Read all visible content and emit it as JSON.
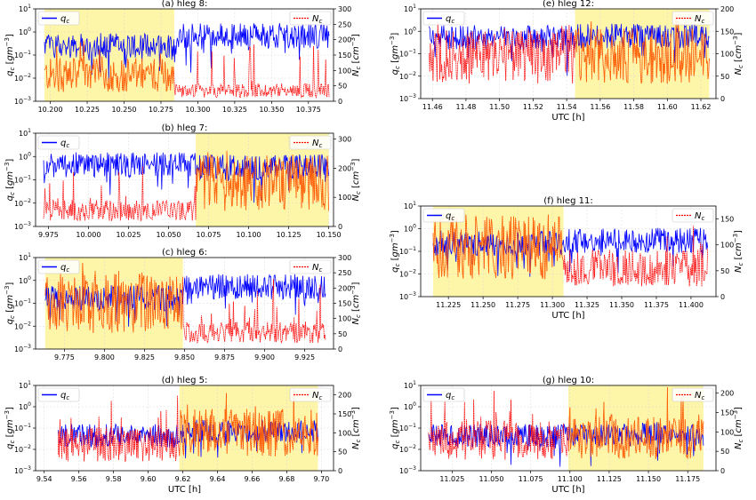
{
  "chart_data": [
    {
      "type": "line",
      "title": "(a)  hleg  8:",
      "xlabel": "",
      "ylabel_left": "q_c [gm^-3]",
      "ylabel_right": "N_c [cm^-3]",
      "xlim": [
        10.19,
        10.392
      ],
      "ylim_left_log": [
        -3,
        1
      ],
      "ylim_right": [
        0,
        300
      ],
      "xticks": [
        10.2,
        10.225,
        10.25,
        10.275,
        10.3,
        10.325,
        10.35,
        10.375
      ],
      "xticklabels": [
        "10.200",
        "10.225",
        "10.250",
        "10.275",
        "10.300",
        "10.325",
        "10.350",
        "10.375"
      ],
      "yticks_right": [
        0,
        50,
        100,
        150,
        200,
        250,
        300
      ],
      "highlight": [
        10.196,
        10.284
      ],
      "series": [
        {
          "name": "q_c",
          "axis": "left",
          "color": "#0000ff",
          "level_segments": [
            [
              10.196,
              10.284,
              0.3
            ],
            [
              10.284,
              10.389,
              0.8
            ]
          ]
        },
        {
          "name": "N_c",
          "axis": "right",
          "color": "#ff0000",
          "level_segments": [
            [
              10.196,
              10.284,
              85
            ],
            [
              10.284,
              10.389,
              35
            ]
          ]
        }
      ],
      "legend": {
        "left": "q_c",
        "right": "N_c"
      }
    },
    {
      "type": "line",
      "title": "(b)  hleg  7:",
      "xlabel": "",
      "ylabel_left": "q_c [gm^-3]",
      "ylabel_right": "N_c [cm^-3]",
      "xlim": [
        9.967,
        10.153
      ],
      "ylim_left_log": [
        -3,
        1
      ],
      "ylim_right": [
        0,
        320
      ],
      "xticks": [
        9.975,
        10.0,
        10.025,
        10.05,
        10.075,
        10.1,
        10.125,
        10.15
      ],
      "xticklabels": [
        "9.975",
        "10.000",
        "10.025",
        "10.050",
        "10.075",
        "10.100",
        "10.125",
        "10.150"
      ],
      "yticks_right": [
        0,
        100,
        200,
        300
      ],
      "highlight": [
        10.067,
        10.15
      ],
      "series": [
        {
          "name": "q_c",
          "axis": "left",
          "color": "#0000ff",
          "level_segments": [
            [
              9.972,
              10.067,
              0.5
            ],
            [
              10.067,
              10.15,
              0.4
            ]
          ]
        },
        {
          "name": "N_c",
          "axis": "right",
          "color": "#ff0000",
          "level_segments": [
            [
              9.972,
              10.067,
              55
            ],
            [
              10.067,
              10.15,
              150
            ]
          ]
        }
      ],
      "legend": {
        "left": "q_c",
        "right": "N_c"
      }
    },
    {
      "type": "line",
      "title": "(c)  hleg  6:",
      "xlabel": "",
      "ylabel_left": "q_c [gm^-3]",
      "ylabel_right": "N_c [cm^-3]",
      "xlim": [
        9.757,
        9.943
      ],
      "ylim_left_log": [
        -3,
        1
      ],
      "ylim_right": [
        0,
        300
      ],
      "xticks": [
        9.775,
        9.8,
        9.825,
        9.85,
        9.875,
        9.9,
        9.925
      ],
      "xticklabels": [
        "9.775",
        "9.800",
        "9.825",
        "9.850",
        "9.875",
        "9.900",
        "9.925"
      ],
      "yticks_right": [
        0,
        50,
        100,
        150,
        200,
        250,
        300
      ],
      "highlight": [
        9.763,
        9.849
      ],
      "series": [
        {
          "name": "q_c",
          "axis": "left",
          "color": "#0000ff",
          "level_segments": [
            [
              9.763,
              9.849,
              0.2
            ],
            [
              9.849,
              9.938,
              0.6
            ]
          ]
        },
        {
          "name": "N_c",
          "axis": "right",
          "color": "#ff0000",
          "level_segments": [
            [
              9.763,
              9.849,
              150
            ],
            [
              9.849,
              9.938,
              55
            ]
          ]
        }
      ],
      "legend": {
        "left": "q_c",
        "right": "N_c"
      }
    },
    {
      "type": "line",
      "title": "(d)  hleg  5:",
      "xlabel": "UTC [h]",
      "ylabel_left": "q_c [gm^-3]",
      "ylabel_right": "N_c [cm^-3]",
      "xlim": [
        9.535,
        9.707
      ],
      "ylim_left_log": [
        -3,
        1
      ],
      "ylim_right": [
        0,
        225
      ],
      "xticks": [
        9.54,
        9.56,
        9.58,
        9.6,
        9.62,
        9.64,
        9.66,
        9.68,
        9.7
      ],
      "xticklabels": [
        "9.54",
        "9.56",
        "9.58",
        "9.60",
        "9.62",
        "9.64",
        "9.66",
        "9.68",
        "9.70"
      ],
      "yticks_right": [
        0,
        50,
        100,
        150,
        200
      ],
      "highlight": [
        9.618,
        9.698
      ],
      "series": [
        {
          "name": "q_c",
          "axis": "left",
          "color": "#0000ff",
          "level_segments": [
            [
              9.548,
              9.618,
              0.05
            ],
            [
              9.618,
              9.698,
              0.08
            ]
          ]
        },
        {
          "name": "N_c",
          "axis": "right",
          "color": "#ff0000",
          "level_segments": [
            [
              9.548,
              9.618,
              70
            ],
            [
              9.618,
              9.698,
              100
            ]
          ]
        }
      ],
      "legend": {
        "left": "q_c",
        "right": "N_c"
      }
    },
    {
      "type": "line",
      "title": "(e)  hleg  12:",
      "xlabel": "UTC [h]",
      "ylabel_left": "q_c [gm^-3]",
      "ylabel_right": "N_c [cm^-3]",
      "xlim": [
        11.453,
        11.629
      ],
      "ylim_left_log": [
        -3,
        1
      ],
      "ylim_right": [
        0,
        200
      ],
      "xticks": [
        11.46,
        11.48,
        11.5,
        11.52,
        11.54,
        11.56,
        11.58,
        11.6,
        11.62
      ],
      "xticklabels": [
        "11.46",
        "11.48",
        "11.50",
        "11.52",
        "11.54",
        "11.56",
        "11.58",
        "11.60",
        "11.62"
      ],
      "yticks_right": [
        0,
        50,
        100,
        150,
        200
      ],
      "highlight": [
        11.545,
        11.625
      ],
      "series": [
        {
          "name": "q_c",
          "axis": "left",
          "color": "#0000ff",
          "level_segments": [
            [
              11.458,
              11.545,
              0.6
            ],
            [
              11.545,
              11.625,
              0.7
            ]
          ]
        },
        {
          "name": "N_c",
          "axis": "right",
          "color": "#ff0000",
          "level_segments": [
            [
              11.458,
              11.545,
              95
            ],
            [
              11.545,
              11.625,
              95
            ]
          ]
        }
      ],
      "legend": {
        "left": "q_c",
        "right": "N_c"
      }
    },
    {
      "type": "line",
      "title": "(f)  hleg  11:",
      "xlabel": "UTC [h]",
      "ylabel_left": "q_c [gm^-3]",
      "ylabel_right": "N_c [cm^-3]",
      "xlim": [
        11.205,
        11.418
      ],
      "ylim_left_log": [
        -3,
        1
      ],
      "ylim_right": [
        0,
        175
      ],
      "xticks": [
        11.225,
        11.25,
        11.275,
        11.3,
        11.325,
        11.35,
        11.375,
        11.4
      ],
      "xticklabels": [
        "11.225",
        "11.250",
        "11.275",
        "11.300",
        "11.325",
        "11.350",
        "11.375",
        "11.400"
      ],
      "yticks_right": [
        0,
        50,
        100,
        150
      ],
      "highlight": [
        11.214,
        11.308
      ],
      "series": [
        {
          "name": "q_c",
          "axis": "left",
          "color": "#0000ff",
          "level_segments": [
            [
              11.214,
              11.308,
              0.25
            ],
            [
              11.308,
              11.412,
              0.35
            ]
          ]
        },
        {
          "name": "N_c",
          "axis": "right",
          "color": "#ff0000",
          "level_segments": [
            [
              11.214,
              11.308,
              95
            ],
            [
              11.308,
              11.412,
              55
            ]
          ]
        }
      ],
      "legend": {
        "left": "q_c",
        "right": "N_c"
      }
    },
    {
      "type": "line",
      "title": "(g)  hleg  10:",
      "xlabel": "UTC [h]",
      "ylabel_left": "q_c [gm^-3]",
      "ylabel_right": "N_c [cm^-3]",
      "xlim": [
        11.005,
        11.193
      ],
      "ylim_left_log": [
        -3,
        1
      ],
      "ylim_right": [
        0,
        220
      ],
      "xticks": [
        11.025,
        11.05,
        11.075,
        11.1,
        11.125,
        11.15,
        11.175
      ],
      "xticklabels": [
        "11.025",
        "11.050",
        "11.075",
        "11.100",
        "11.125",
        "11.150",
        "11.175"
      ],
      "yticks_right": [
        0,
        50,
        100,
        150,
        200
      ],
      "highlight": [
        11.099,
        11.185
      ],
      "series": [
        {
          "name": "q_c",
          "axis": "left",
          "color": "#0000ff",
          "level_segments": [
            [
              11.01,
              11.099,
              0.05
            ],
            [
              11.099,
              11.185,
              0.06
            ]
          ]
        },
        {
          "name": "N_c",
          "axis": "right",
          "color": "#ff0000",
          "level_segments": [
            [
              11.01,
              11.099,
              80
            ],
            [
              11.099,
              11.185,
              85
            ]
          ]
        }
      ],
      "legend": {
        "left": "q_c",
        "right": "N_c"
      }
    }
  ],
  "style": {
    "highlight_color": "#fdf6a8",
    "overlap_color": "#ff7a00"
  }
}
